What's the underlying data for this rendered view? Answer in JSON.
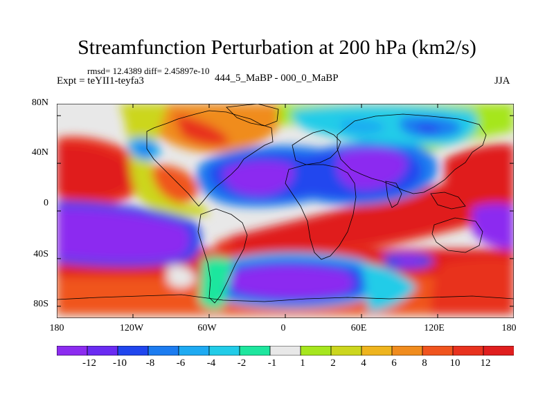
{
  "title": "Streamfunction Perturbation at 200 hPa (km2/s)",
  "stats": "rmsd= 12.4389 diff= 2.45897e-10",
  "experiment_label": "Expt = teYII1-teyfa3",
  "center_label": "444_5_MaBP - 000_0_MaBP",
  "season_label": "JJA",
  "map": {
    "projection": "cylindrical-equidistant",
    "lon_range": [
      -180,
      180
    ],
    "lat_range": [
      -90,
      90
    ],
    "y_tick_labels": [
      "80N",
      "40N",
      "0",
      "40S",
      "80S"
    ],
    "y_tick_values": [
      80,
      40,
      0,
      -40,
      -80
    ],
    "x_tick_labels": [
      "180",
      "120W",
      "60W",
      "0",
      "60E",
      "120E",
      "180"
    ],
    "x_tick_values": [
      -180,
      -120,
      -60,
      0,
      60,
      120,
      180
    ]
  },
  "colorbar": {
    "tick_labels": [
      "-12",
      "-10",
      "-8",
      "-6",
      "-4",
      "-2",
      "-1",
      "1",
      "2",
      "4",
      "6",
      "8",
      "10",
      "12"
    ],
    "colors": [
      "#8c2cf0",
      "#6a2bf2",
      "#2046ee",
      "#1c7cf0",
      "#1eaaf2",
      "#22cce8",
      "#1ee69e",
      "#e8e8e8",
      "#a6e61e",
      "#ccd61e",
      "#eeb41e",
      "#f08c1e",
      "#f0541e",
      "#e8321e",
      "#e01e1e"
    ]
  }
}
